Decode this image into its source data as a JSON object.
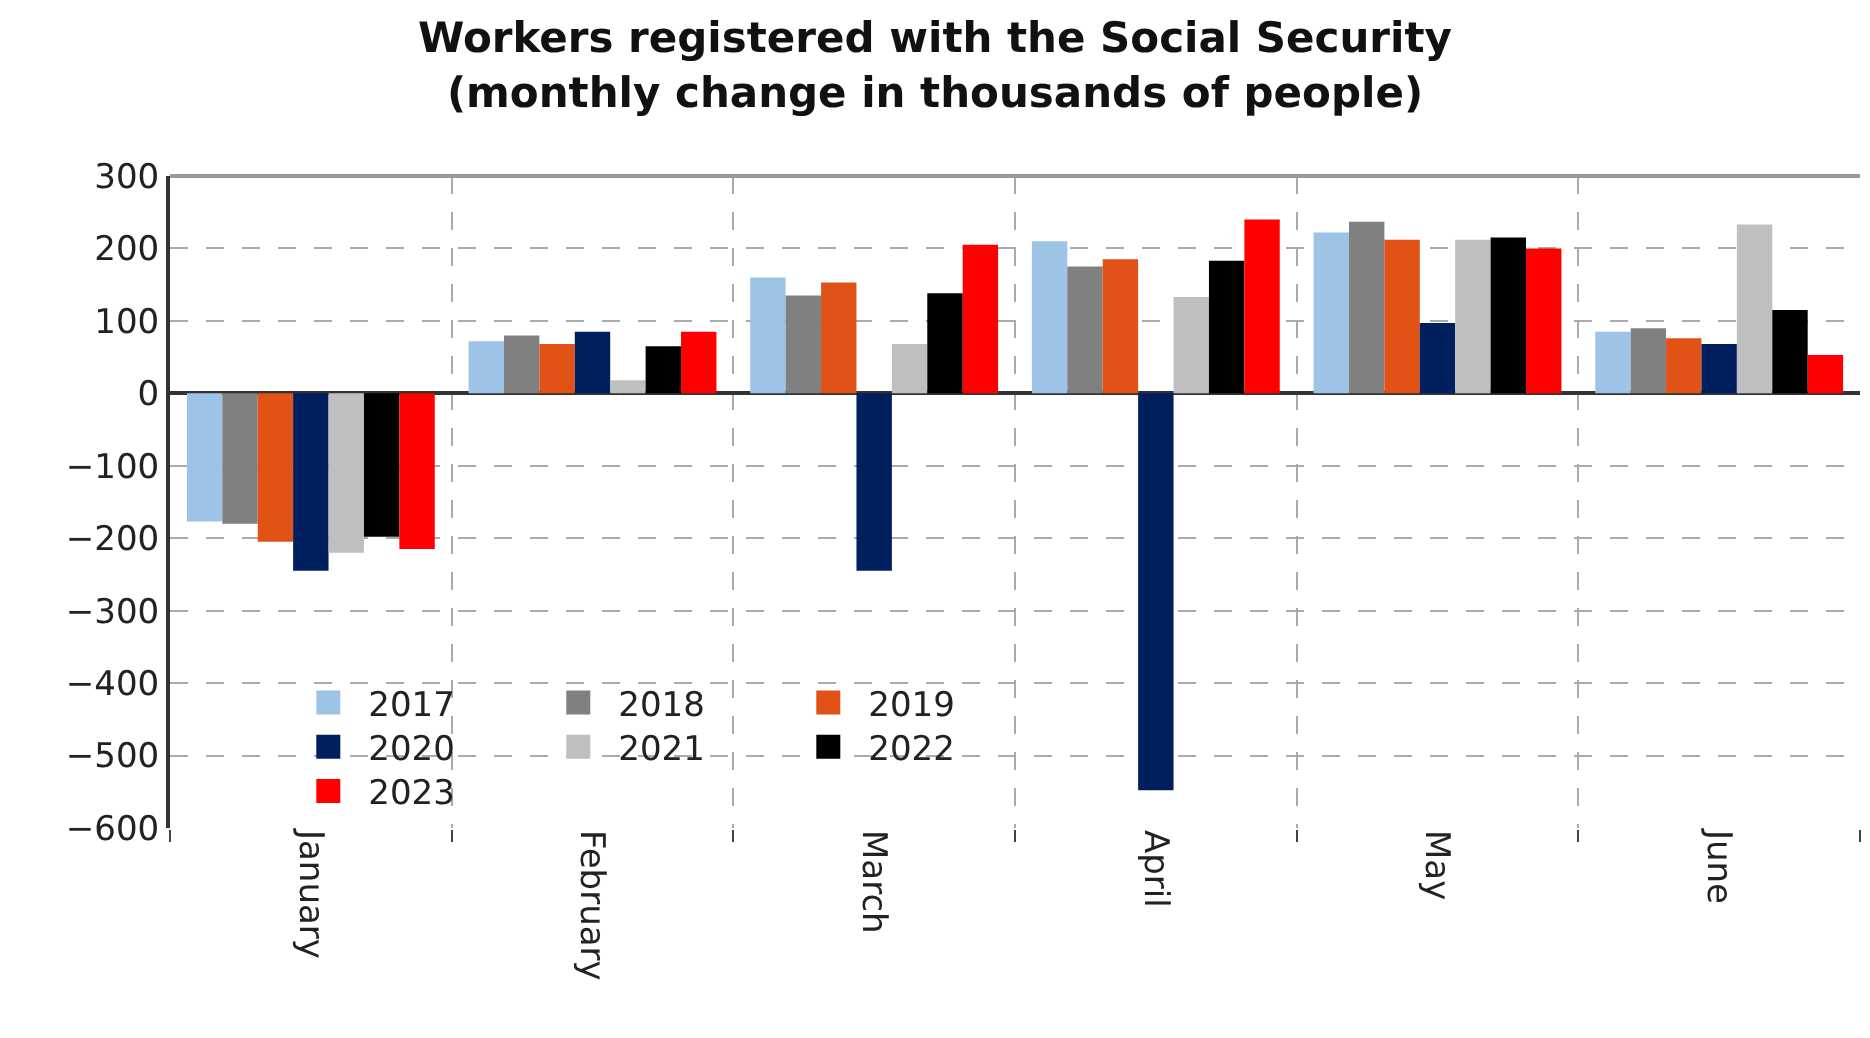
{
  "chart_data": {
    "type": "bar",
    "title": "Workers registered with the Social Security\n(monthly change in thousands of people)",
    "categories": [
      "January",
      "February",
      "March",
      "April",
      "May",
      "June"
    ],
    "series": [
      {
        "name": "2017",
        "color": "#9dc3e6",
        "values": [
          -177,
          72,
          160,
          210,
          222,
          85
        ]
      },
      {
        "name": "2018",
        "color": "#808080",
        "values": [
          -180,
          80,
          135,
          175,
          237,
          90
        ]
      },
      {
        "name": "2019",
        "color": "#e05215",
        "values": [
          -205,
          68,
          153,
          185,
          212,
          76
        ]
      },
      {
        "name": "2020",
        "color": "#001f5f",
        "values": [
          -245,
          85,
          -245,
          -548,
          97,
          68
        ]
      },
      {
        "name": "2021",
        "color": "#bfbfbf",
        "values": [
          -220,
          18,
          68,
          133,
          212,
          233
        ]
      },
      {
        "name": "2022",
        "color": "#000000",
        "values": [
          -198,
          65,
          138,
          183,
          215,
          115
        ]
      },
      {
        "name": "2023",
        "color": "#ff0000",
        "values": [
          -215,
          85,
          205,
          240,
          200,
          53
        ]
      }
    ],
    "ylim": [
      -600,
      300
    ],
    "yticks": [
      -600,
      -500,
      -400,
      -300,
      -200,
      -100,
      0,
      100,
      200,
      300
    ],
    "grid": true,
    "legend": "bottom left"
  }
}
